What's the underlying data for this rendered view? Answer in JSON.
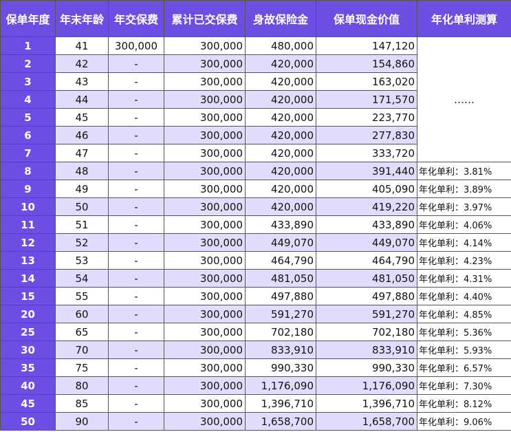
{
  "table": {
    "header": [
      "保单年度",
      "年末年龄",
      "年交保费",
      "累计已交保费",
      "身故保险金",
      "保单现金价值",
      "年化单利测算"
    ],
    "rows": [
      [
        "1",
        "41",
        "300,000",
        "300,000",
        "480,000",
        "147,120"
      ],
      [
        "2",
        "42",
        "-",
        "300,000",
        "420,000",
        "154,860"
      ],
      [
        "3",
        "43",
        "-",
        "300,000",
        "420,000",
        "163,020"
      ],
      [
        "4",
        "44",
        "-",
        "300,000",
        "420,000",
        "171,570"
      ],
      [
        "5",
        "45",
        "-",
        "300,000",
        "420,000",
        "223,770"
      ],
      [
        "6",
        "46",
        "-",
        "300,000",
        "420,000",
        "277,830"
      ],
      [
        "7",
        "47",
        "-",
        "300,000",
        "420,000",
        "333,720"
      ],
      [
        "8",
        "48",
        "-",
        "300,000",
        "420,000",
        "391,440"
      ],
      [
        "9",
        "49",
        "-",
        "300,000",
        "420,000",
        "405,090"
      ],
      [
        "10",
        "50",
        "-",
        "300,000",
        "420,000",
        "419,220"
      ],
      [
        "11",
        "51",
        "-",
        "300,000",
        "433,890",
        "433,890"
      ],
      [
        "12",
        "52",
        "-",
        "300,000",
        "449,070",
        "449,070"
      ],
      [
        "13",
        "53",
        "-",
        "300,000",
        "464,790",
        "464,790"
      ],
      [
        "14",
        "54",
        "-",
        "300,000",
        "481,050",
        "481,050"
      ],
      [
        "15",
        "55",
        "-",
        "300,000",
        "497,880",
        "497,880"
      ],
      [
        "20",
        "60",
        "-",
        "300,000",
        "591,270",
        "591,270"
      ],
      [
        "25",
        "65",
        "-",
        "300,000",
        "702,180",
        "702,180"
      ],
      [
        "30",
        "70",
        "-",
        "300,000",
        "833,910",
        "833,910"
      ],
      [
        "35",
        "75",
        "-",
        "300,000",
        "990,330",
        "990,330"
      ],
      [
        "40",
        "80",
        "-",
        "300,000",
        "1,176,090",
        "1,176,090"
      ],
      [
        "45",
        "85",
        "-",
        "300,000",
        "1,396,710",
        "1,396,710"
      ],
      [
        "50",
        "90",
        "-",
        "300,000",
        "1,658,700",
        "1,658,700"
      ]
    ],
    "rate_note": "……",
    "rates": [
      "年化单利：3.81%",
      "年化单利：3.89%",
      "年化单利：3.97%",
      "年化单利：4.06%",
      "年化单利：4.14%",
      "年化单利：4.23%",
      "年化单利：4.31%",
      "年化单利：4.40%",
      "年化单利：4.85%",
      "年化单利：5.36%",
      "年化单利：5.93%",
      "年化单利：6.57%",
      "年化单利：7.30%",
      "年化单利：8.12%",
      "年化单利：9.06%"
    ]
  }
}
